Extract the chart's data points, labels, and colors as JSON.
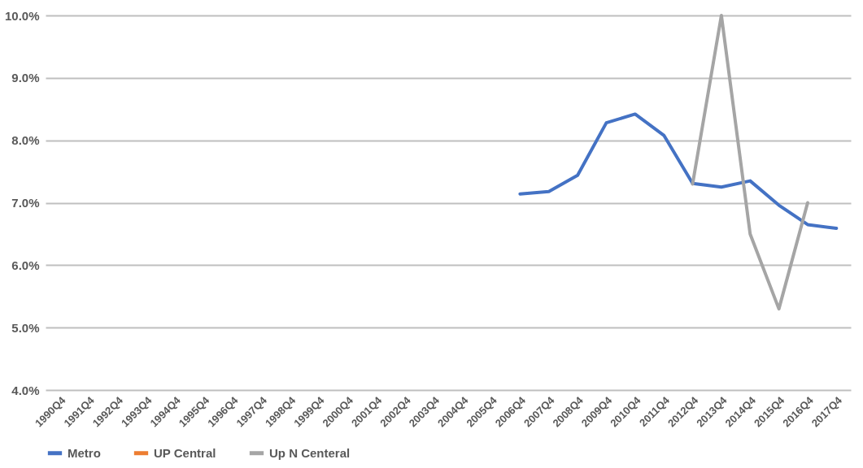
{
  "chart_data": {
    "type": "line",
    "categories": [
      "1990Q4",
      "1991Q4",
      "1992Q4",
      "1993Q4",
      "1994Q4",
      "1995Q4",
      "1996Q4",
      "1997Q4",
      "1998Q4",
      "1999Q4",
      "2000Q4",
      "2001Q4",
      "2002Q4",
      "2003Q4",
      "2004Q4",
      "2005Q4",
      "2006Q4",
      "2007Q4",
      "2008Q4",
      "2009Q4",
      "2010Q4",
      "2011Q4",
      "2012Q4",
      "2013Q4",
      "2014Q4",
      "2015Q4",
      "2016Q4",
      "2017Q4"
    ],
    "series": [
      {
        "name": "Metro",
        "color": "#4472c4",
        "values": [
          null,
          null,
          null,
          null,
          null,
          null,
          null,
          null,
          null,
          null,
          null,
          null,
          null,
          null,
          null,
          null,
          7.14,
          7.18,
          7.44,
          8.28,
          8.42,
          8.08,
          7.31,
          7.25,
          7.35,
          6.96,
          6.65,
          6.59
        ]
      },
      {
        "name": "UP Central",
        "color": "#ed7d31",
        "values": [
          null,
          null,
          null,
          null,
          null,
          null,
          null,
          null,
          null,
          null,
          null,
          null,
          null,
          null,
          null,
          null,
          null,
          null,
          null,
          null,
          null,
          null,
          null,
          null,
          null,
          null,
          null,
          null
        ]
      },
      {
        "name": "Up N Centeral",
        "color": "#a5a5a5",
        "values": [
          null,
          null,
          null,
          null,
          null,
          null,
          null,
          null,
          null,
          null,
          null,
          null,
          null,
          null,
          null,
          null,
          null,
          null,
          null,
          null,
          null,
          null,
          7.3,
          10.0,
          6.5,
          5.3,
          7.0,
          null
        ]
      }
    ],
    "ylim": [
      4,
      10
    ],
    "yticks": [
      {
        "value": 4,
        "label": "4.0%"
      },
      {
        "value": 5,
        "label": "5.0%"
      },
      {
        "value": 6,
        "label": "6.0%"
      },
      {
        "value": 7,
        "label": "7.0%"
      },
      {
        "value": 8,
        "label": "8.0%"
      },
      {
        "value": 9,
        "label": "9.0%"
      },
      {
        "value": 10,
        "label": "10.0%"
      }
    ],
    "grid": "y",
    "legend": "bottom",
    "line_style": "solid"
  }
}
